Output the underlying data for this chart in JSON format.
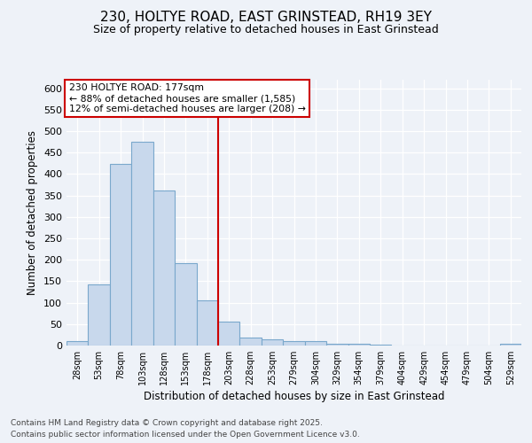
{
  "title_line1": "230, HOLTYE ROAD, EAST GRINSTEAD, RH19 3EY",
  "title_line2": "Size of property relative to detached houses in East Grinstead",
  "xlabel": "Distribution of detached houses by size in East Grinstead",
  "ylabel": "Number of detached properties",
  "categories": [
    "28sqm",
    "53sqm",
    "78sqm",
    "103sqm",
    "128sqm",
    "153sqm",
    "178sqm",
    "203sqm",
    "228sqm",
    "253sqm",
    "279sqm",
    "304sqm",
    "329sqm",
    "354sqm",
    "379sqm",
    "404sqm",
    "429sqm",
    "454sqm",
    "479sqm",
    "504sqm",
    "529sqm"
  ],
  "values": [
    10,
    143,
    423,
    475,
    362,
    193,
    105,
    55,
    18,
    15,
    11,
    10,
    5,
    4,
    3,
    0,
    0,
    0,
    0,
    0,
    4
  ],
  "bar_color": "#c8d8ec",
  "bar_edge_color": "#7aa8cc",
  "vline_color": "#cc0000",
  "annotation_text_line1": "230 HOLTYE ROAD: 177sqm",
  "annotation_text_line2": "← 88% of detached houses are smaller (1,585)",
  "annotation_text_line3": "12% of semi-detached houses are larger (208) →",
  "annotation_box_color": "#cc0000",
  "ylim": [
    0,
    620
  ],
  "yticks": [
    0,
    50,
    100,
    150,
    200,
    250,
    300,
    350,
    400,
    450,
    500,
    550,
    600
  ],
  "background_color": "#eef2f8",
  "grid_color": "#ffffff",
  "footer_line1": "Contains HM Land Registry data © Crown copyright and database right 2025.",
  "footer_line2": "Contains public sector information licensed under the Open Government Licence v3.0."
}
